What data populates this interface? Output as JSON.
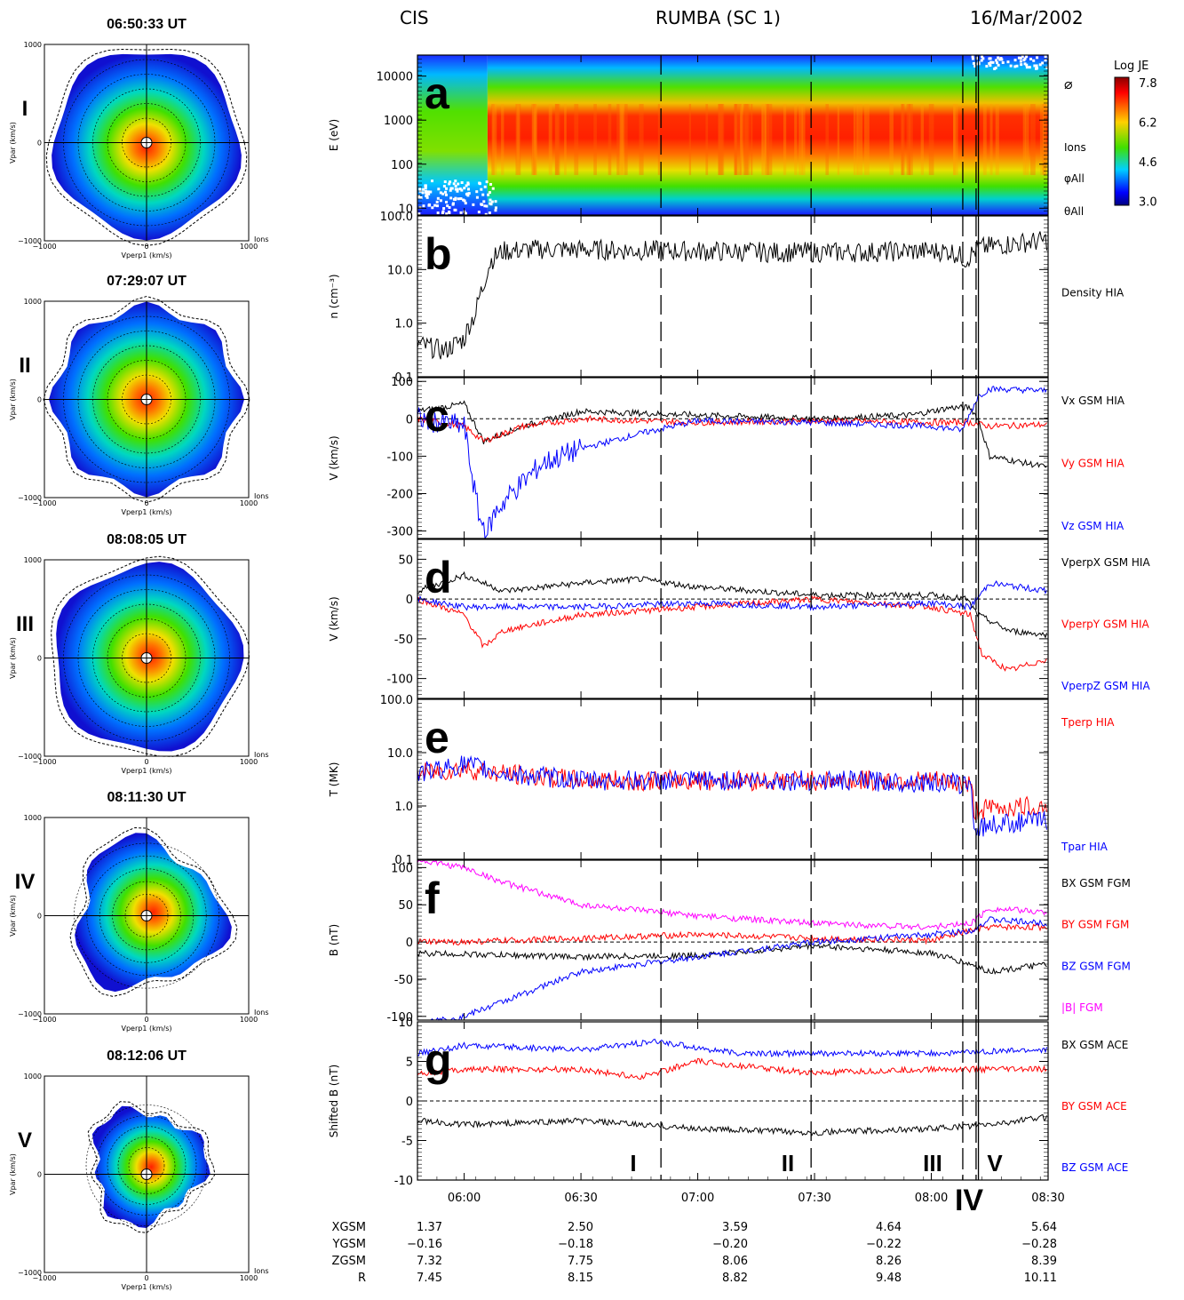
{
  "header": {
    "left": "CIS",
    "center": "RUMBA (SC 1)",
    "right": "16/Mar/2002"
  },
  "colors": {
    "black": "#000000",
    "red": "#ff0000",
    "blue": "#0000ff",
    "magenta": "#ff00ff"
  },
  "distributions": [
    {
      "time": "06:50:33 UT",
      "roman": "I",
      "shape": "round"
    },
    {
      "time": "07:29:07 UT",
      "roman": "II",
      "shape": "octagon"
    },
    {
      "time": "08:08:05 UT",
      "roman": "III",
      "shape": "round"
    },
    {
      "time": "08:11:30 UT",
      "roman": "IV",
      "shape": "irregular"
    },
    {
      "time": "08:12:06 UT",
      "roman": "V",
      "shape": "partial"
    }
  ],
  "dist_axes": {
    "ylabel": "Vpar (km/s)",
    "xlabel": "Vperp1 (km/s)",
    "species": "Ions",
    "ticks": [
      "1000",
      "0",
      "−1000"
    ],
    "xticks": [
      "−1000",
      "0",
      "1000"
    ]
  },
  "chart_data": {
    "type": "line",
    "time_axis": {
      "range": [
        "05:48",
        "08:30"
      ],
      "ticks": [
        "06:00",
        "06:30",
        "07:00",
        "07:30",
        "08:00",
        "08:30"
      ]
    },
    "event_lines": [
      "06:50:33",
      "07:29:07",
      "08:08:05",
      "08:11:30",
      "08:12:06"
    ],
    "event_labels": [
      "I",
      "II",
      "III",
      "IV",
      "V"
    ],
    "panels": [
      {
        "letter": "a",
        "type": "heatmap",
        "ylabel": "E (eV)",
        "log": true,
        "ylim": [
          7,
          30000
        ],
        "yticks": [
          "10000",
          "1000",
          "100",
          "10"
        ],
        "right_labels": [
          "⌀",
          "Ions",
          "φAll",
          "θAll"
        ],
        "colorbar": {
          "title": "Log JE",
          "ticks": [
            "7.8",
            "6.2",
            "4.6",
            "3.0"
          ]
        }
      },
      {
        "letter": "b",
        "ylabel": "n (cm⁻³)",
        "log": true,
        "ylim": [
          0.1,
          100
        ],
        "yticks": [
          "100.0",
          "10.0",
          "1.0",
          "0.1"
        ],
        "series": [
          {
            "name": "Density HIA",
            "color": "#000000",
            "x": [
              "05:48",
              "05:55",
              "06:00",
              "06:03",
              "06:05",
              "06:07",
              "06:10",
              "06:20",
              "06:40",
              "07:00",
              "07:20",
              "07:40",
              "07:55",
              "08:05",
              "08:09",
              "08:12",
              "08:20",
              "08:30"
            ],
            "y": [
              0.4,
              0.3,
              0.5,
              1.5,
              5,
              15,
              22,
              24,
              23,
              22,
              21,
              21,
              22,
              22,
              15,
              25,
              30,
              35
            ]
          }
        ]
      },
      {
        "letter": "c",
        "ylabel": "V (km/s)",
        "ylim": [
          -320,
          110
        ],
        "yticks": [
          "100",
          "0",
          "-100",
          "-200",
          "-300"
        ],
        "series": [
          {
            "name": "Vx GSM HIA",
            "color": "#000000",
            "x": [
              "05:48",
              "06:00",
              "06:05",
              "06:15",
              "06:30",
              "07:00",
              "07:30",
              "07:55",
              "08:05",
              "08:10",
              "08:12",
              "08:15",
              "08:30"
            ],
            "y": [
              20,
              40,
              -60,
              -20,
              20,
              10,
              0,
              10,
              30,
              30,
              0,
              -100,
              -130
            ]
          },
          {
            "name": "Vy GSM HIA",
            "color": "#ff0000",
            "x": [
              "05:48",
              "06:00",
              "06:05",
              "06:15",
              "06:30",
              "07:00",
              "07:30",
              "08:00",
              "08:10",
              "08:15",
              "08:30"
            ],
            "y": [
              0,
              -20,
              -60,
              -20,
              0,
              -10,
              -5,
              -10,
              -10,
              -20,
              -15
            ]
          },
          {
            "name": "Vz GSM HIA",
            "color": "#0000ff",
            "x": [
              "05:48",
              "06:00",
              "06:02",
              "06:04",
              "06:06",
              "06:08",
              "06:12",
              "06:20",
              "06:30",
              "06:45",
              "07:00",
              "07:30",
              "08:00",
              "08:08",
              "08:12",
              "08:15",
              "08:30"
            ],
            "y": [
              0,
              -20,
              -150,
              -270,
              -300,
              -250,
              -200,
              -120,
              -80,
              -40,
              -5,
              -10,
              -20,
              -30,
              60,
              80,
              75
            ]
          }
        ]
      },
      {
        "letter": "d",
        "ylabel": "V (km/s)",
        "ylim": [
          -125,
          75
        ],
        "yticks": [
          "50",
          "0",
          "-50",
          "-100"
        ],
        "series": [
          {
            "name": "VperpX GSM HIA",
            "color": "#000000",
            "x": [
              "05:48",
              "06:00",
              "06:10",
              "06:30",
              "06:45",
              "07:00",
              "07:30",
              "08:00",
              "08:09",
              "08:12",
              "08:20",
              "08:30"
            ],
            "y": [
              10,
              30,
              10,
              20,
              25,
              15,
              5,
              5,
              0,
              -20,
              -40,
              -45
            ]
          },
          {
            "name": "VperpY GSM HIA",
            "color": "#ff0000",
            "x": [
              "05:48",
              "06:00",
              "06:05",
              "06:10",
              "06:30",
              "07:00",
              "07:30",
              "08:00",
              "08:10",
              "08:13",
              "08:20",
              "08:30"
            ],
            "y": [
              0,
              -20,
              -60,
              -40,
              -20,
              -10,
              0,
              -10,
              -20,
              -70,
              -90,
              -75
            ]
          },
          {
            "name": "VperpZ GSM HIA",
            "color": "#0000ff",
            "x": [
              "05:48",
              "06:00",
              "06:30",
              "07:00",
              "07:30",
              "08:00",
              "08:10",
              "08:15",
              "08:30"
            ],
            "y": [
              0,
              -10,
              -10,
              -5,
              -10,
              -5,
              -10,
              20,
              10
            ]
          }
        ]
      },
      {
        "letter": "e",
        "ylabel": "T (MK)",
        "log": true,
        "ylim": [
          0.1,
          100
        ],
        "yticks": [
          "100.0",
          "10.0",
          "1.0",
          "0.1"
        ],
        "series": [
          {
            "name": "Tperp HIA",
            "color": "#ff0000",
            "x": [
              "05:48",
              "06:00",
              "06:10",
              "06:30",
              "07:00",
              "07:30",
              "08:00",
              "08:10",
              "08:11",
              "08:15",
              "08:30"
            ],
            "y": [
              4,
              5,
              4,
              3,
              3,
              3,
              3,
              2.5,
              0.8,
              0.9,
              1.0
            ]
          },
          {
            "name": "Tpar HIA",
            "color": "#0000ff",
            "x": [
              "05:48",
              "06:00",
              "06:10",
              "06:30",
              "07:00",
              "07:30",
              "08:00",
              "08:10",
              "08:11",
              "08:15",
              "08:30"
            ],
            "y": [
              4,
              6,
              4,
              3,
              3,
              3,
              2.8,
              2.5,
              0.35,
              0.45,
              0.55
            ]
          }
        ]
      },
      {
        "letter": "f",
        "ylabel": "B (nT)",
        "ylim": [
          -105,
          110
        ],
        "yticks": [
          "100",
          "50",
          "0",
          "-50",
          "-100"
        ],
        "series": [
          {
            "name": "BX GSM FGM",
            "color": "#000000",
            "x": [
              "05:48",
              "06:30",
              "07:00",
              "07:30",
              "08:00",
              "08:10",
              "08:15",
              "08:30"
            ],
            "y": [
              -15,
              -20,
              -18,
              -5,
              -15,
              -30,
              -40,
              -30
            ]
          },
          {
            "name": "BY GSM FGM",
            "color": "#ff0000",
            "x": [
              "05:48",
              "06:00",
              "06:30",
              "07:00",
              "07:30",
              "08:00",
              "08:10",
              "08:15",
              "08:30"
            ],
            "y": [
              0,
              0,
              5,
              10,
              5,
              2,
              15,
              20,
              20
            ]
          },
          {
            "name": "BZ GSM FGM",
            "color": "#0000ff",
            "x": [
              "05:48",
              "06:00",
              "06:10",
              "06:30",
              "07:00",
              "07:30",
              "08:00",
              "08:10",
              "08:15",
              "08:30"
            ],
            "y": [
              -110,
              -100,
              -80,
              -40,
              -20,
              0,
              10,
              15,
              30,
              25
            ]
          },
          {
            "name": "|B| FGM",
            "color": "#ff00ff",
            "x": [
              "05:48",
              "06:00",
              "06:10",
              "06:30",
              "07:00",
              "07:30",
              "08:00",
              "08:10",
              "08:15",
              "08:30"
            ],
            "y": [
              110,
              100,
              80,
              50,
              35,
              25,
              20,
              25,
              45,
              40
            ]
          }
        ]
      },
      {
        "letter": "g",
        "ylabel": "Shifted B (nT)",
        "ylim": [
          -10,
          10
        ],
        "yticks": [
          "10",
          "5",
          "0",
          "-5",
          "-10"
        ],
        "series": [
          {
            "name": "BX GSM ACE",
            "color": "#000000",
            "x": [
              "05:48",
              "06:00",
              "06:30",
              "07:00",
              "07:30",
              "08:00",
              "08:15",
              "08:30"
            ],
            "y": [
              -2.5,
              -3,
              -2.5,
              -3.5,
              -4,
              -3.5,
              -3,
              -2
            ]
          },
          {
            "name": "BY GSM ACE",
            "color": "#ff0000",
            "x": [
              "05:48",
              "06:00",
              "06:30",
              "06:45",
              "07:00",
              "07:30",
              "08:00",
              "08:30"
            ],
            "y": [
              3.5,
              4,
              4,
              3,
              5,
              3.5,
              4,
              4
            ]
          },
          {
            "name": "BZ GSM ACE",
            "color": "#0000ff",
            "x": [
              "05:48",
              "06:00",
              "06:30",
              "06:50",
              "07:10",
              "07:30",
              "08:00",
              "08:30"
            ],
            "y": [
              6,
              7,
              6.5,
              7.5,
              6,
              6,
              6,
              6.5
            ]
          }
        ]
      }
    ]
  },
  "orbit": {
    "row_labels": [
      "XGSM",
      "YGSM",
      "ZGSM",
      "R"
    ],
    "columns": [
      [
        "1.37",
        "−0.16",
        "7.32",
        "7.45"
      ],
      [
        "2.50",
        "−0.18",
        "7.75",
        "8.15"
      ],
      [
        "3.59",
        "−0.20",
        "8.06",
        "8.82"
      ],
      [
        "4.64",
        "−0.22",
        "8.26",
        "9.48"
      ],
      [
        "5.64",
        "−0.28",
        "8.39",
        "10.11"
      ]
    ]
  }
}
